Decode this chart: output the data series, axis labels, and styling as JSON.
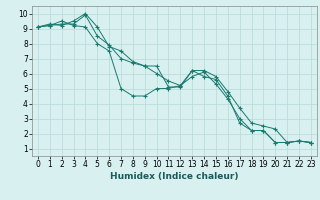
{
  "line1_x": [
    0,
    1,
    2,
    3,
    4,
    5,
    6,
    7,
    8,
    9,
    10,
    11,
    12,
    13,
    14,
    15,
    16,
    17,
    18,
    19,
    20,
    21,
    22,
    23
  ],
  "line1_y": [
    9.1,
    9.3,
    9.2,
    9.5,
    10.0,
    9.1,
    7.8,
    7.5,
    6.8,
    6.5,
    6.0,
    5.5,
    5.2,
    6.2,
    6.2,
    5.8,
    4.8,
    3.7,
    2.7,
    2.5,
    2.3,
    1.4,
    1.5,
    1.4
  ],
  "line2_x": [
    0,
    1,
    2,
    3,
    4,
    5,
    6,
    7,
    8,
    9,
    10,
    11,
    12,
    13,
    14,
    15,
    16,
    17,
    18,
    19,
    20,
    21,
    22,
    23
  ],
  "line2_y": [
    9.1,
    9.2,
    9.5,
    9.2,
    9.1,
    8.0,
    7.5,
    5.0,
    4.5,
    4.5,
    5.0,
    5.0,
    5.2,
    5.8,
    6.1,
    5.3,
    4.3,
    3.0,
    2.2,
    2.2,
    1.4,
    1.4,
    1.5,
    1.4
  ],
  "line3_x": [
    0,
    1,
    2,
    3,
    4,
    5,
    6,
    7,
    8,
    9,
    10,
    11,
    12,
    13,
    14,
    15,
    16,
    17,
    18,
    19,
    20,
    21,
    22,
    23
  ],
  "line3_y": [
    9.1,
    9.2,
    9.3,
    9.3,
    9.9,
    8.5,
    7.9,
    7.0,
    6.7,
    6.5,
    6.5,
    5.1,
    5.1,
    6.2,
    5.8,
    5.6,
    4.5,
    2.7,
    2.2,
    2.2,
    1.4,
    1.4,
    1.5,
    1.4
  ],
  "line_color": "#1a7a6e",
  "bg_color": "#d8f0f0",
  "grid_color": "#b8d8d8",
  "xlabel": "Humidex (Indice chaleur)",
  "xlim": [
    -0.5,
    23.5
  ],
  "ylim": [
    0.5,
    10.5
  ],
  "xticks": [
    0,
    1,
    2,
    3,
    4,
    5,
    6,
    7,
    8,
    9,
    10,
    11,
    12,
    13,
    14,
    15,
    16,
    17,
    18,
    19,
    20,
    21,
    22,
    23
  ],
  "yticks": [
    1,
    2,
    3,
    4,
    5,
    6,
    7,
    8,
    9,
    10
  ],
  "xlabel_fontsize": 6.5,
  "tick_fontsize": 5.5
}
